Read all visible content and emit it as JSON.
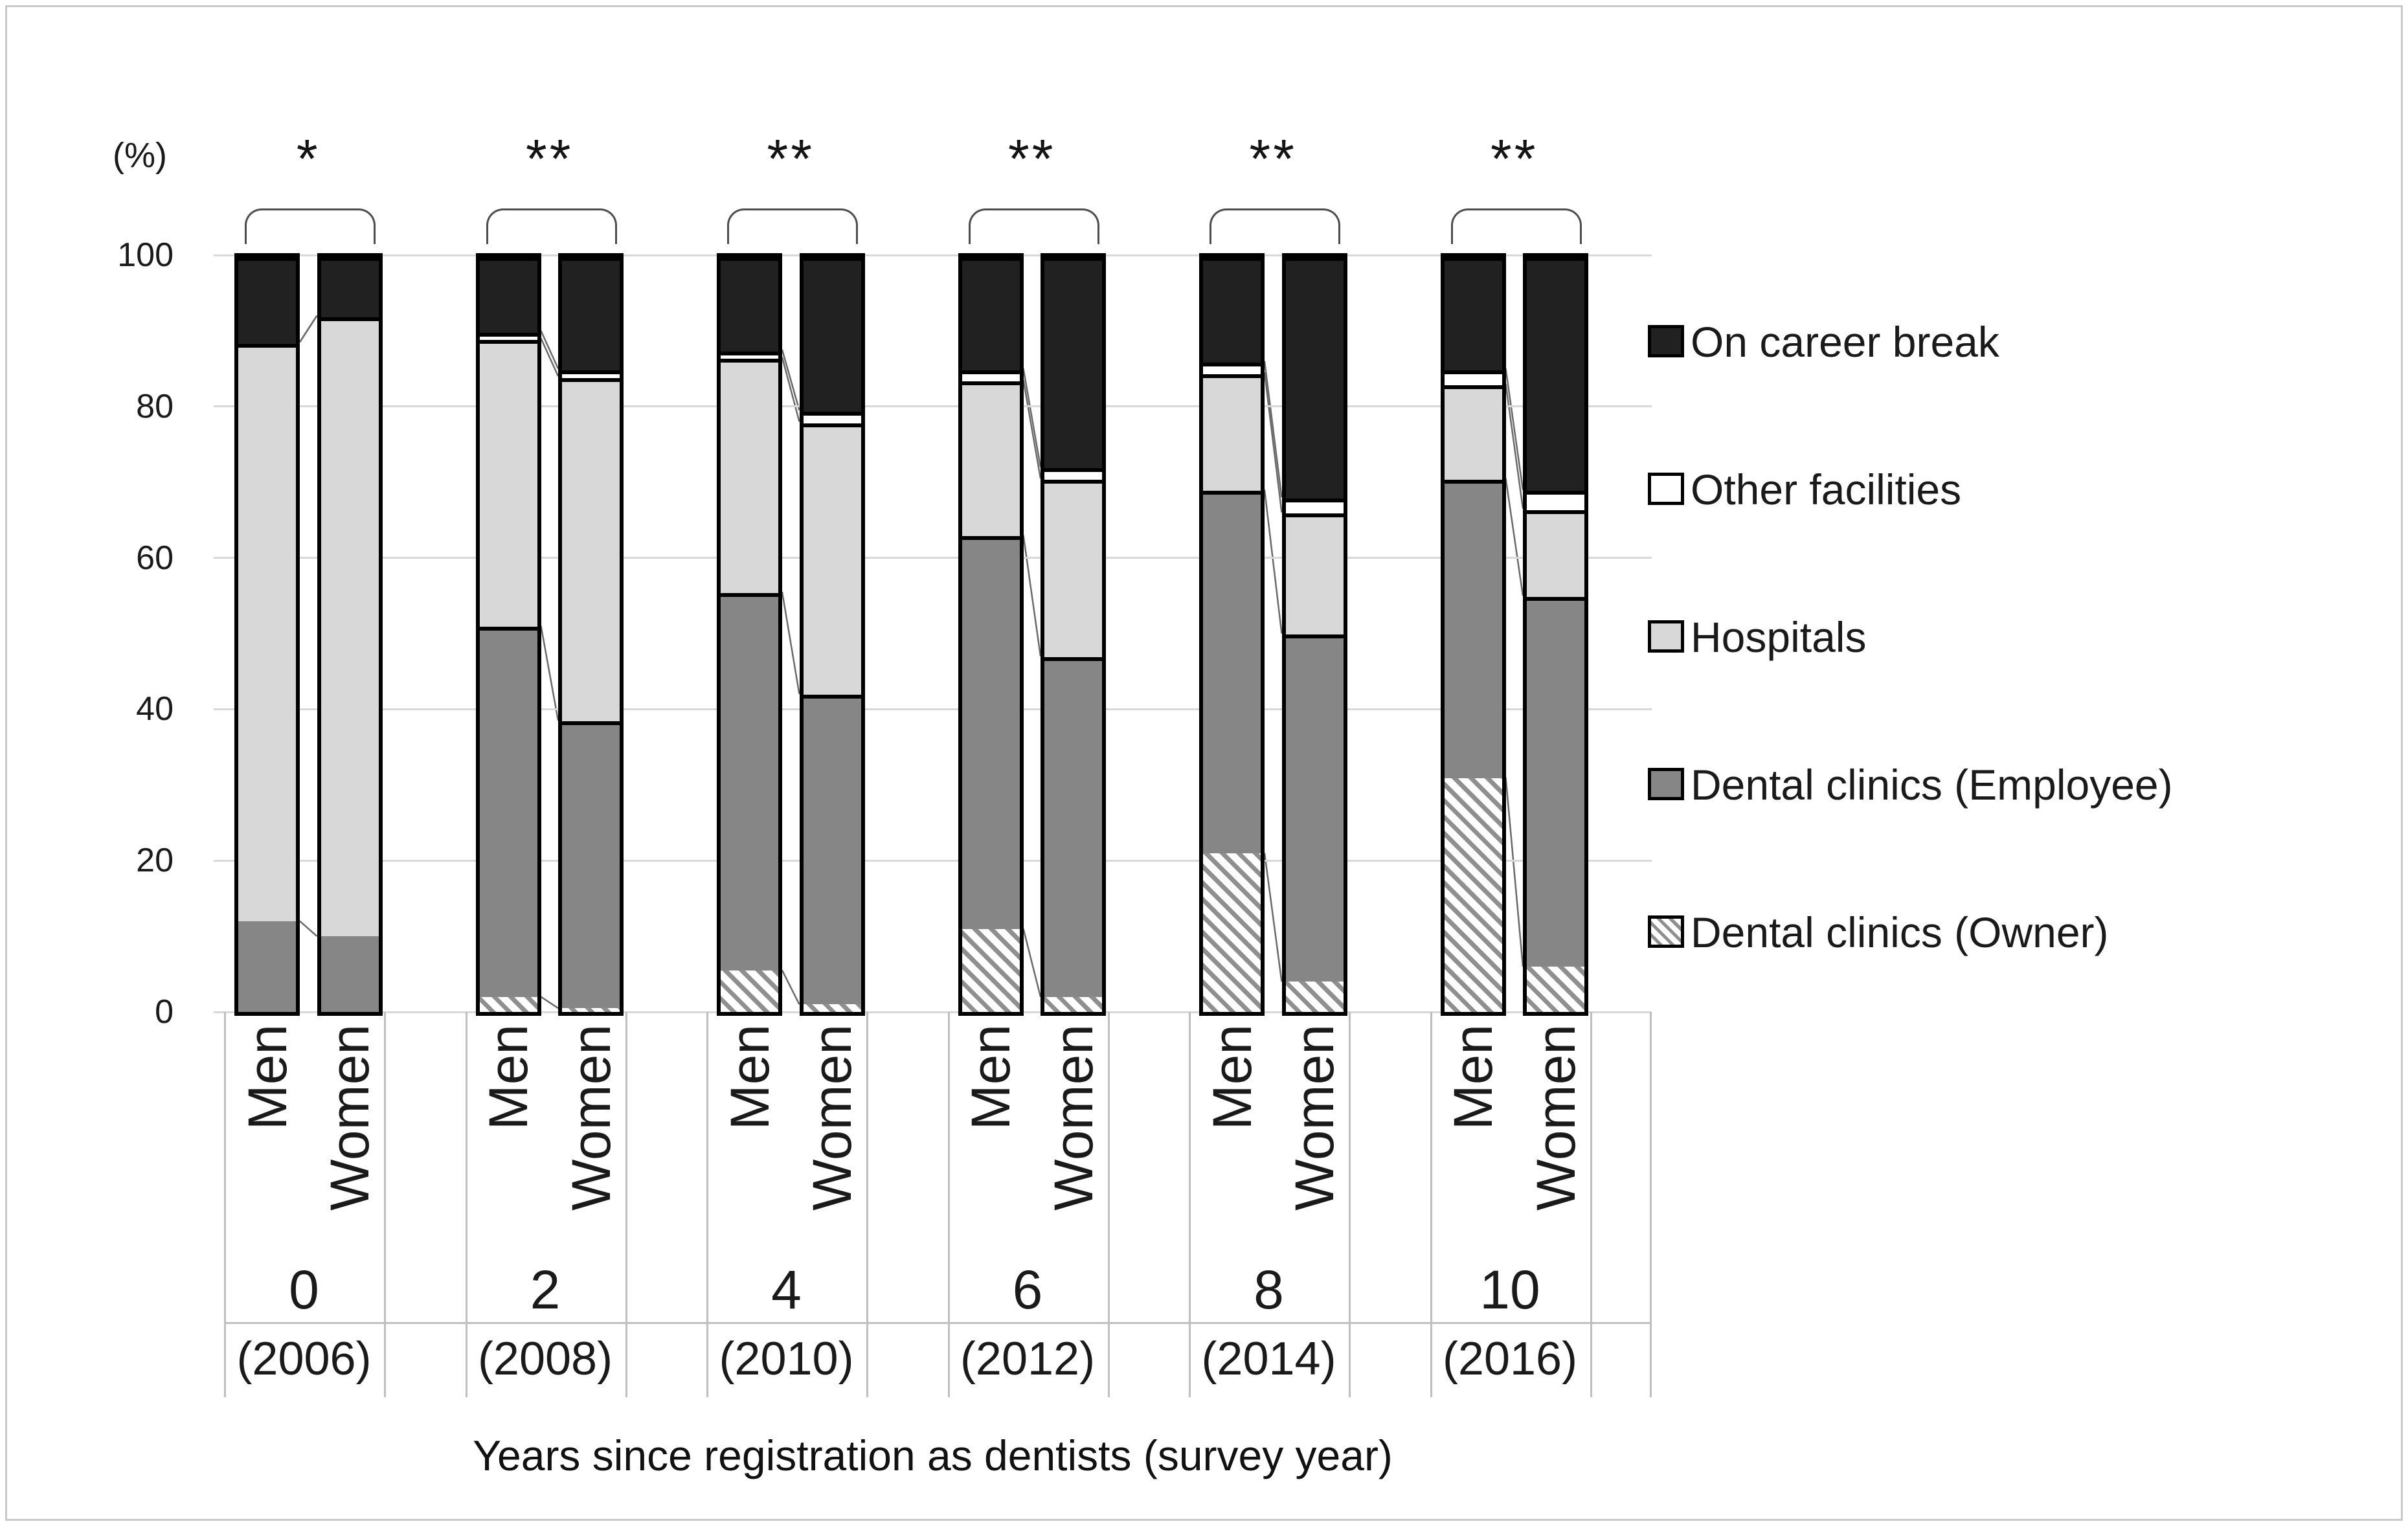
{
  "figure": {
    "ylabel_unit": "(%)",
    "x_axis_title": "Years since registration as dentists (survey year)"
  },
  "y_axis": {
    "ticks": [
      0,
      20,
      40,
      60,
      80,
      100
    ],
    "max": 100
  },
  "legend": [
    {
      "key": "career_break",
      "label": "On career break",
      "swatch": "solid-black"
    },
    {
      "key": "other_facilities",
      "label": "Other facilities",
      "swatch": "solid-white"
    },
    {
      "key": "hospitals",
      "label": "Hospitals",
      "swatch": "solid-lightgray"
    },
    {
      "key": "employee",
      "label": "Dental clinics (Employee)",
      "swatch": "solid-gray"
    },
    {
      "key": "owner",
      "label": "Dental clinics (Owner)",
      "swatch": "diagonal-hatch"
    }
  ],
  "colors": {
    "career_break": "#212121",
    "other_facilities": "#ffffff",
    "hospitals": "#d8d8d8",
    "employee": "#868686",
    "owner_stripe": "#8f8f8f",
    "gridline": "#d9d9d9",
    "axis_cell_line": "#bfbfbf",
    "series_line": "#6a6a6a",
    "bar_border": "#000000"
  },
  "chart_data": {
    "type": "bar",
    "subtype": "100%-stacked-columns-paired",
    "title": "",
    "xlabel": "Years since registration as dentists (survey year)",
    "ylabel": "(%)",
    "ylim": [
      0,
      100
    ],
    "grid": true,
    "legend_position": "right",
    "stack_order_bottom_to_top": [
      "Dental clinics (Owner)",
      "Dental clinics (Employee)",
      "Hospitals",
      "Other facilities",
      "On career break"
    ],
    "sex_labels": [
      "Men",
      "Women"
    ],
    "groups": [
      {
        "years_since_registration": "0",
        "survey_year": "(2006)",
        "significance": "*",
        "bars": [
          {
            "sex": "Men",
            "values": [
              0,
              12,
              76.5,
              0,
              11.5
            ]
          },
          {
            "sex": "Women",
            "values": [
              0,
              10,
              82,
              0,
              8
            ]
          }
        ]
      },
      {
        "years_since_registration": "2",
        "survey_year": "(2008)",
        "significance": "**",
        "bars": [
          {
            "sex": "Men",
            "values": [
              2,
              49,
              38,
              1,
              10
            ]
          },
          {
            "sex": "Women",
            "values": [
              0.5,
              38,
              45.5,
              1,
              15
            ]
          }
        ]
      },
      {
        "years_since_registration": "4",
        "survey_year": "(2010)",
        "significance": "**",
        "bars": [
          {
            "sex": "Men",
            "values": [
              5.5,
              50,
              31,
              1,
              12.5
            ]
          },
          {
            "sex": "Women",
            "values": [
              1,
              41,
              36,
              1.5,
              20.5
            ]
          }
        ]
      },
      {
        "years_since_registration": "6",
        "survey_year": "(2012)",
        "significance": "**",
        "bars": [
          {
            "sex": "Men",
            "values": [
              11,
              52,
              20.5,
              1.5,
              15
            ]
          },
          {
            "sex": "Women",
            "values": [
              2,
              45,
              23.5,
              1.5,
              28
            ]
          }
        ]
      },
      {
        "years_since_registration": "8",
        "survey_year": "(2014)",
        "significance": "**",
        "bars": [
          {
            "sex": "Men",
            "values": [
              21,
              48,
              15.5,
              1.5,
              14
            ]
          },
          {
            "sex": "Women",
            "values": [
              4,
              46,
              16,
              2,
              32
            ]
          }
        ]
      },
      {
        "years_since_registration": "10",
        "survey_year": "(2016)",
        "significance": "**",
        "bars": [
          {
            "sex": "Men",
            "values": [
              31,
              39.5,
              12.5,
              2,
              15
            ]
          },
          {
            "sex": "Women",
            "values": [
              6,
              49,
              11.5,
              2.5,
              31
            ]
          }
        ]
      }
    ]
  }
}
